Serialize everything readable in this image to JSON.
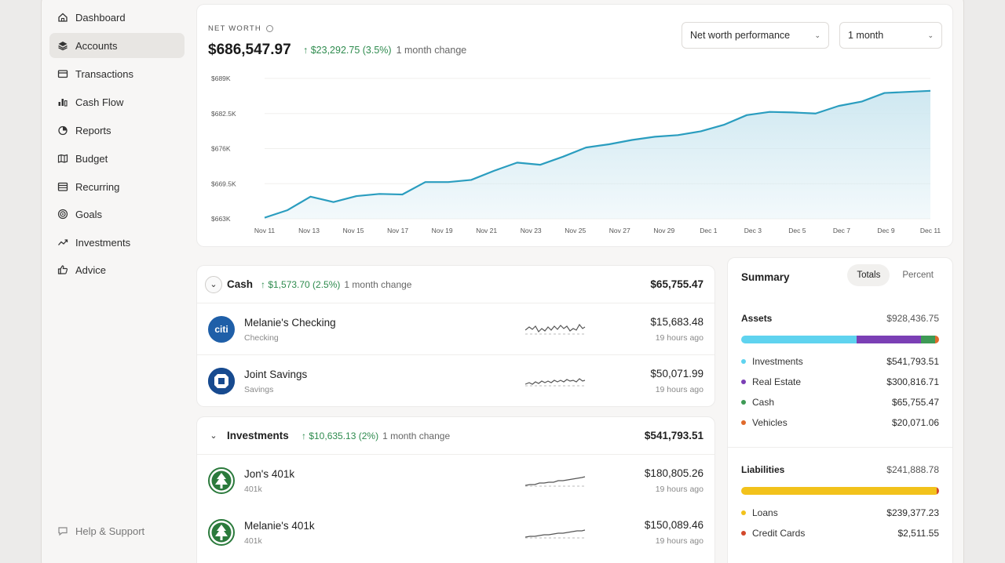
{
  "sidebar": {
    "items": [
      {
        "label": "Dashboard",
        "icon": "home-icon"
      },
      {
        "label": "Accounts",
        "icon": "layers-icon",
        "active": true
      },
      {
        "label": "Transactions",
        "icon": "card-icon"
      },
      {
        "label": "Cash Flow",
        "icon": "bar-chart-icon"
      },
      {
        "label": "Reports",
        "icon": "pie-chart-icon"
      },
      {
        "label": "Budget",
        "icon": "map-icon"
      },
      {
        "label": "Recurring",
        "icon": "calendar-icon"
      },
      {
        "label": "Goals",
        "icon": "target-icon"
      },
      {
        "label": "Investments",
        "icon": "trend-up-icon"
      },
      {
        "label": "Advice",
        "icon": "thumbs-up-icon"
      }
    ],
    "help_label": "Help & Support"
  },
  "net_worth": {
    "label": "NET WORTH",
    "value": "$686,547.97",
    "change": "↑ $23,292.75 (3.5%)",
    "change_note": "1 month change",
    "view_select": "Net worth performance",
    "range_select": "1 month"
  },
  "chart_data": {
    "type": "area",
    "title": "",
    "xlabel": "",
    "ylabel": "",
    "y_tick_labels": [
      "$663K",
      "$669.5K",
      "$676K",
      "$682.5K",
      "$689K"
    ],
    "ylim": [
      663000,
      689000
    ],
    "x_tick_labels": [
      "Nov 11",
      "Nov 13",
      "Nov 15",
      "Nov 17",
      "Nov 19",
      "Nov 21",
      "Nov 23",
      "Nov 25",
      "Nov 27",
      "Nov 29",
      "Dec 1",
      "Dec 3",
      "Dec 5",
      "Dec 7",
      "Dec 9",
      "Dec 11"
    ],
    "values": [
      663200,
      664600,
      667100,
      666100,
      667200,
      667600,
      667500,
      669800,
      669800,
      670200,
      671900,
      673400,
      673000,
      674500,
      676200,
      676800,
      677600,
      678200,
      678500,
      679200,
      680400,
      682200,
      682800,
      682700,
      682500,
      683900,
      684700,
      686300,
      686500,
      686700
    ],
    "line_color": "#2a9dbf",
    "fill_color": "#cfe8f1",
    "grid": true
  },
  "cash": {
    "title": "Cash",
    "change": "↑ $1,573.70 (2.5%)",
    "change_note": "1 month change",
    "total": "$65,755.47",
    "accounts": [
      {
        "name": "Melanie's Checking",
        "type": "Checking",
        "balance": "$15,683.48",
        "updated": "19 hours ago",
        "logo_text": "citi"
      },
      {
        "name": "Joint Savings",
        "type": "Savings",
        "balance": "$50,071.99",
        "updated": "19 hours ago",
        "logo_text": ""
      }
    ]
  },
  "investments": {
    "title": "Investments",
    "change": "↑ $10,635.13 (2%)",
    "change_note": "1 month change",
    "total": "$541,793.51",
    "accounts": [
      {
        "name": "Jon's 401k",
        "type": "401k",
        "balance": "$180,805.26",
        "updated": "19 hours ago"
      },
      {
        "name": "Melanie's 401k",
        "type": "401k",
        "balance": "$150,089.46",
        "updated": "19 hours ago"
      }
    ]
  },
  "summary": {
    "title": "Summary",
    "tabs": [
      "Totals",
      "Percent"
    ],
    "assets": {
      "label": "Assets",
      "total": "$928,436.75",
      "items": [
        {
          "name": "Investments",
          "amount": "$541,793.51",
          "color": "#5fd3ef",
          "share": 0.5836
        },
        {
          "name": "Real Estate",
          "amount": "$300,816.71",
          "color": "#7b3fb5",
          "share": 0.324
        },
        {
          "name": "Cash",
          "amount": "$65,755.47",
          "color": "#3e9a55",
          "share": 0.0708
        },
        {
          "name": "Vehicles",
          "amount": "$20,071.06",
          "color": "#e06a2c",
          "share": 0.0216
        }
      ]
    },
    "liabilities": {
      "label": "Liabilities",
      "total": "$241,888.78",
      "items": [
        {
          "name": "Loans",
          "amount": "$239,377.23",
          "color": "#f2c21b",
          "share": 0.9896
        },
        {
          "name": "Credit Cards",
          "amount": "$2,511.55",
          "color": "#d2482b",
          "share": 0.0104
        }
      ]
    }
  }
}
